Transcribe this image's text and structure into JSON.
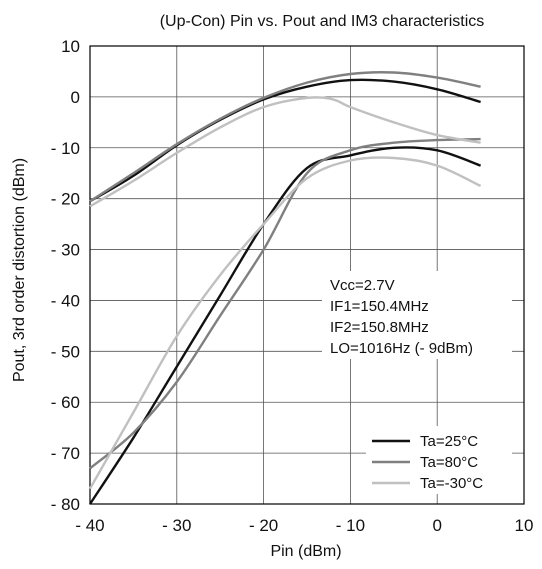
{
  "chart_data": {
    "type": "line",
    "title": "(Up-Con) Pin vs. Pout and IM3 characteristics",
    "xlabel": "Pin  (dBm)",
    "ylabel": "Pout, 3rd order distortion  (dBm)",
    "xlim": [
      -40,
      10
    ],
    "ylim": [
      -80,
      10
    ],
    "grid": true,
    "x_ticks": [
      -40,
      -30,
      -20,
      -10,
      0,
      10
    ],
    "x_tick_labels": [
      "- 40",
      "- 30",
      "- 20",
      "- 10",
      "0",
      "10"
    ],
    "y_ticks": [
      10,
      0,
      -10,
      -20,
      -30,
      -40,
      -50,
      -60,
      -70,
      -80
    ],
    "y_tick_labels": [
      "10",
      "0",
      "- 10",
      "- 20",
      "- 30",
      "- 40",
      "- 50",
      "- 60",
      "- 70",
      "- 80"
    ],
    "legend_position": "bottom-right",
    "annotation_lines": [
      "Vcc=2.7V",
      "IF1=150.4MHz",
      "IF2=150.8MHz",
      "LO=1016Hz (- 9dBm)"
    ],
    "series": [
      {
        "name": "Ta=25°C",
        "color": "#111111",
        "kind": "Pout",
        "points": [
          [
            -40,
            -20.5
          ],
          [
            -35,
            -15.5
          ],
          [
            -30,
            -9.5
          ],
          [
            -25,
            -4.5
          ],
          [
            -20,
            -0.5
          ],
          [
            -15,
            2
          ],
          [
            -10,
            3.3
          ],
          [
            -5,
            3
          ],
          [
            0,
            1.5
          ],
          [
            5,
            -1
          ]
        ]
      },
      {
        "name": "Ta=25°C",
        "color": "#111111",
        "kind": "IM3",
        "points": [
          [
            -40,
            -80
          ],
          [
            -35,
            -67
          ],
          [
            -30,
            -53
          ],
          [
            -25,
            -39
          ],
          [
            -20,
            -25
          ],
          [
            -15,
            -14
          ],
          [
            -10,
            -11.5
          ],
          [
            -5,
            -10
          ],
          [
            0,
            -10.5
          ],
          [
            5,
            -13.5
          ]
        ]
      },
      {
        "name": "Ta=80°C",
        "color": "#808080",
        "kind": "Pout",
        "points": [
          [
            -40,
            -20.5
          ],
          [
            -35,
            -15
          ],
          [
            -30,
            -9.3
          ],
          [
            -25,
            -4.3
          ],
          [
            -20,
            -0.2
          ],
          [
            -15,
            2.8
          ],
          [
            -10,
            4.5
          ],
          [
            -5,
            4.8
          ],
          [
            0,
            3.8
          ],
          [
            5,
            2
          ]
        ]
      },
      {
        "name": "Ta=80°C",
        "color": "#808080",
        "kind": "IM3",
        "points": [
          [
            -40,
            -73
          ],
          [
            -35,
            -66
          ],
          [
            -30,
            -56
          ],
          [
            -25,
            -43
          ],
          [
            -20,
            -30
          ],
          [
            -15,
            -15
          ],
          [
            -10,
            -10.5
          ],
          [
            -5,
            -9
          ],
          [
            0,
            -8.5
          ],
          [
            5,
            -8.3
          ]
        ]
      },
      {
        "name": "Ta=-30°C",
        "color": "#c0c0c0",
        "kind": "Pout",
        "points": [
          [
            -40,
            -21.5
          ],
          [
            -35,
            -16.5
          ],
          [
            -30,
            -11
          ],
          [
            -25,
            -6
          ],
          [
            -20,
            -2
          ],
          [
            -15,
            -0.2
          ],
          [
            -12,
            -0.5
          ],
          [
            -10,
            -2
          ],
          [
            -5,
            -5
          ],
          [
            0,
            -7.5
          ],
          [
            5,
            -9
          ]
        ]
      },
      {
        "name": "Ta=-30°C",
        "color": "#c0c0c0",
        "kind": "IM3",
        "points": [
          [
            -40,
            -77
          ],
          [
            -35,
            -62
          ],
          [
            -30,
            -47
          ],
          [
            -25,
            -35
          ],
          [
            -20,
            -25
          ],
          [
            -15,
            -16
          ],
          [
            -10,
            -12.5
          ],
          [
            -5,
            -12
          ],
          [
            0,
            -13.5
          ],
          [
            5,
            -17.5
          ]
        ]
      }
    ],
    "legend_entries": [
      {
        "label": "Ta=25°C",
        "color": "#111111"
      },
      {
        "label": "Ta=80°C",
        "color": "#808080"
      },
      {
        "label": "Ta=-30°C",
        "color": "#c0c0c0"
      }
    ]
  }
}
